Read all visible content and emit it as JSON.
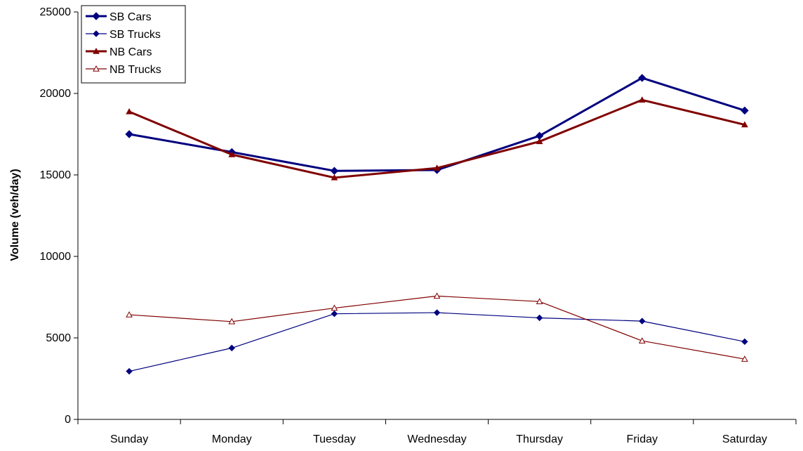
{
  "chart_data": {
    "type": "line",
    "title": "",
    "xlabel": "",
    "ylabel": "Volume (veh/day)",
    "categories": [
      "Sunday",
      "Monday",
      "Tuesday",
      "Wednesday",
      "Thursday",
      "Friday",
      "Saturday"
    ],
    "ylim": [
      0,
      25000
    ],
    "yticks": [
      "0",
      "5000",
      "10000",
      "15000",
      "20000",
      "25000"
    ],
    "grid": false,
    "legend_position": "top-left",
    "series": [
      {
        "name": "SB Cars",
        "values": [
          17500,
          16400,
          15250,
          15300,
          17400,
          20950,
          18950
        ],
        "color": "#00007f",
        "marker": "diamond",
        "weight": "thick"
      },
      {
        "name": "SB Trucks",
        "values": [
          2950,
          4380,
          6480,
          6550,
          6230,
          6030,
          4770
        ],
        "color": "#00007f",
        "marker": "diamond",
        "weight": "thin"
      },
      {
        "name": "NB Cars",
        "values": [
          18880,
          16250,
          14830,
          15420,
          17050,
          19600,
          18080
        ],
        "color": "#800000",
        "marker": "triangle",
        "weight": "thick"
      },
      {
        "name": "NB Trucks",
        "values": [
          6420,
          6000,
          6830,
          7570,
          7230,
          4820,
          3700
        ],
        "color": "#800000",
        "marker": "triangle",
        "weight": "thin"
      }
    ]
  }
}
